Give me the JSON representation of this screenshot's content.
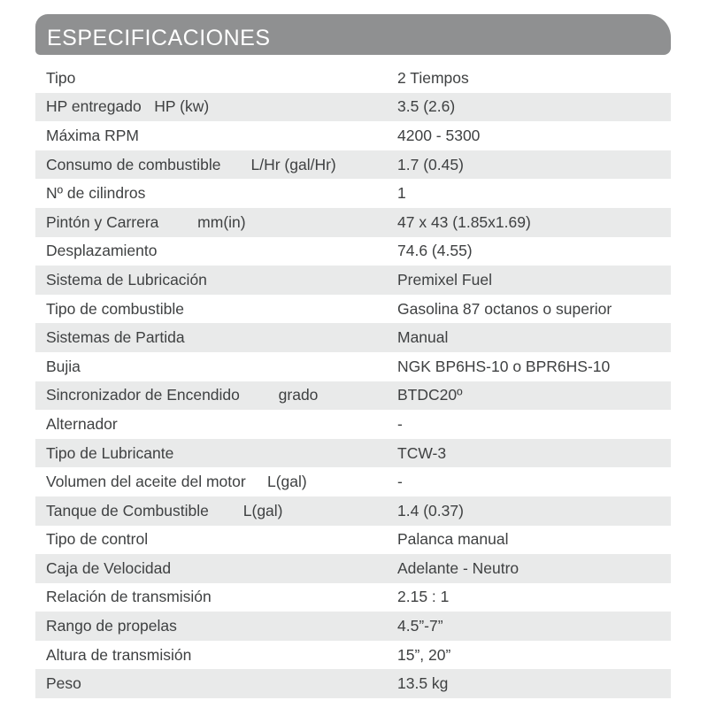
{
  "header": {
    "title": "ESPECIFICACIONES"
  },
  "colors": {
    "header_bg": "#8f9091",
    "header_text": "#ffffff",
    "row_alt_bg": "#e9eaea",
    "text": "#3f4142"
  },
  "table": {
    "rows": [
      {
        "label": "Tipo",
        "value": "2 Tiempos"
      },
      {
        "label": "HP entregado   HP (kw)",
        "value": "3.5 (2.6)"
      },
      {
        "label": "Máxima RPM",
        "value": "4200 - 5300"
      },
      {
        "label": "Consumo de combustible       L/Hr (gal/Hr)",
        "value": "1.7 (0.45)"
      },
      {
        "label": "Nº de cilindros",
        "value": "1"
      },
      {
        "label": "Pintón y Carrera         mm(in)",
        "value": "47 x 43 (1.85x1.69)"
      },
      {
        "label": "Desplazamiento",
        "value": "74.6 (4.55)"
      },
      {
        "label": "Sistema de Lubricación",
        "value": "Premixel Fuel"
      },
      {
        "label": "Tipo de combustible",
        "value": "Gasolina 87 octanos o superior"
      },
      {
        "label": "Sistemas de Partida",
        "value": "Manual"
      },
      {
        "label": "Bujia",
        "value": "NGK BP6HS-10 o BPR6HS-10"
      },
      {
        "label": "Sincronizador de Encendido         grado",
        "value": "BTDC20º"
      },
      {
        "label": "Alternador",
        "value": "-"
      },
      {
        "label": "Tipo de Lubricante",
        "value": "TCW-3"
      },
      {
        "label": "Volumen del aceite del motor     L(gal)",
        "value": "-"
      },
      {
        "label": "Tanque de Combustible        L(gal)",
        "value": "1.4 (0.37)"
      },
      {
        "label": "Tipo de control",
        "value": "Palanca manual"
      },
      {
        "label": "Caja de Velocidad",
        "value": "Adelante - Neutro"
      },
      {
        "label": "Relación de transmisión",
        "value": "2.15 : 1"
      },
      {
        "label": "Rango de propelas",
        "value": "4.5”-7”"
      },
      {
        "label": "Altura de transmisión",
        "value": "15”, 20”"
      },
      {
        "label": "Peso",
        "value": "13.5 kg"
      }
    ]
  }
}
